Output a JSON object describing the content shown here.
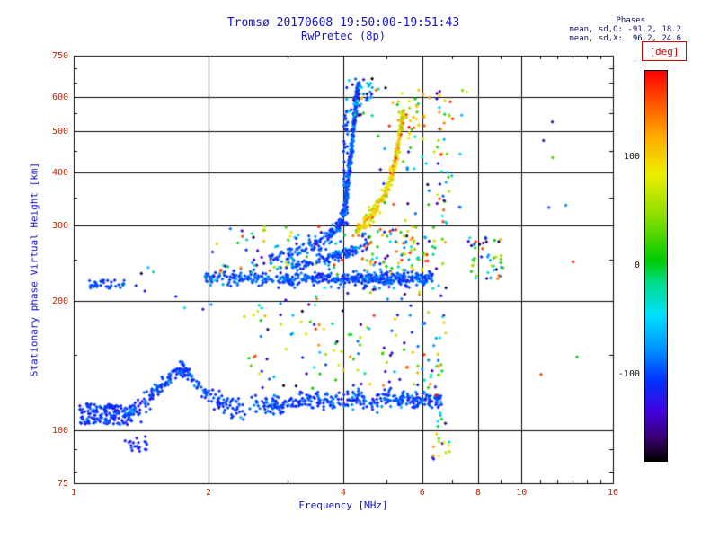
{
  "stats": {
    "header": "Phases",
    "line_o": "mean, sd,O: -91.2, 18.2",
    "line_x": "mean, sd,X:  96.2, 24.6"
  },
  "chart_data": {
    "type": "scatter",
    "title": "Tromsø 20170608 19:50:00-19:51:43",
    "subtitle": "RwPretec (8p)",
    "xlabel": "Frequency [MHz]",
    "ylabel": "Stationary phase Virtual Height [km]",
    "x_scale": "log",
    "x_range": [
      1,
      16
    ],
    "y_scale": "log",
    "y_range": [
      75,
      750
    ],
    "x_ticks_major": [
      {
        "v": 1,
        "label": "1"
      },
      {
        "v": 2,
        "label": "2"
      },
      {
        "v": 4,
        "label": "4"
      },
      {
        "v": 6,
        "label": "6"
      },
      {
        "v": 8,
        "label": "8"
      },
      {
        "v": 10,
        "label": "10"
      },
      {
        "v": 16,
        "label": "16"
      }
    ],
    "x_ticks_minor": [
      3,
      5,
      7,
      9,
      11,
      12,
      13,
      14,
      15
    ],
    "x_grid": [
      2,
      4,
      6,
      8,
      10
    ],
    "y_ticks_major": [
      {
        "v": 75,
        "label": "75"
      },
      {
        "v": 100,
        "label": "100"
      },
      {
        "v": 200,
        "label": "200"
      },
      {
        "v": 300,
        "label": "300"
      },
      {
        "v": 400,
        "label": "400"
      },
      {
        "v": 500,
        "label": "500"
      },
      {
        "v": 600,
        "label": "600"
      },
      {
        "v": 750,
        "label": "750"
      }
    ],
    "y_ticks_minor": [
      80,
      90,
      150,
      250,
      350,
      450,
      550,
      650,
      700
    ],
    "y_grid": [
      100,
      200,
      300,
      400,
      500,
      600
    ],
    "grid": true,
    "colorbar": {
      "label": "[deg]",
      "range": [
        -180,
        180
      ],
      "ticks": [
        {
          "v": 100,
          "label": "100"
        },
        {
          "v": 0,
          "label": "0"
        },
        {
          "v": -100,
          "label": "-100"
        }
      ],
      "stops": [
        [
          -180,
          "#000000"
        ],
        [
          -160,
          "#38006b"
        ],
        [
          -135,
          "#4400dd"
        ],
        [
          -105,
          "#0033ff"
        ],
        [
          -75,
          "#0099ff"
        ],
        [
          -45,
          "#00e0ff"
        ],
        [
          -15,
          "#00dd88"
        ],
        [
          5,
          "#00cc00"
        ],
        [
          45,
          "#88dd00"
        ],
        [
          85,
          "#eeee00"
        ],
        [
          120,
          "#ffaa00"
        ],
        [
          150,
          "#ff5500"
        ],
        [
          180,
          "#ff0000"
        ]
      ]
    },
    "series": [
      {
        "name": "e-region-left-blob",
        "kind": "cloud",
        "f": [
          1.03,
          1.35
        ],
        "h": [
          103,
          115
        ],
        "count": 150,
        "phase": {
          "mean": -105,
          "sd": 10
        }
      },
      {
        "name": "e-region-low-left",
        "kind": "cloud",
        "f": [
          1.28,
          1.46
        ],
        "h": [
          88,
          97
        ],
        "count": 20,
        "phase": {
          "mean": -110,
          "sd": 10
        }
      },
      {
        "name": "e-region-trace",
        "kind": "trace",
        "count": 560,
        "jitter_h": 3,
        "phase": {
          "mean": -100,
          "sd": 13
        },
        "control": [
          [
            1.3,
            108
          ],
          [
            1.4,
            112
          ],
          [
            1.5,
            120
          ],
          [
            1.6,
            130
          ],
          [
            1.7,
            138
          ],
          [
            1.78,
            137
          ],
          [
            1.88,
            128
          ],
          [
            2.0,
            120
          ],
          [
            2.15,
            115
          ],
          [
            2.35,
            112
          ],
          [
            2.6,
            115
          ],
          [
            2.85,
            113
          ],
          [
            3.1,
            116
          ],
          [
            3.4,
            118
          ],
          [
            3.7,
            115
          ],
          [
            4.0,
            117
          ],
          [
            4.3,
            119
          ],
          [
            4.6,
            116
          ],
          [
            4.9,
            118
          ],
          [
            5.2,
            117
          ],
          [
            5.5,
            119
          ],
          [
            5.9,
            117
          ],
          [
            6.3,
            118
          ],
          [
            6.6,
            118
          ]
        ]
      },
      {
        "name": "e-region-low-right",
        "kind": "cloud",
        "f": [
          6.3,
          7.0
        ],
        "h": [
          85,
          95
        ],
        "count": 12,
        "phase": {
          "uniform": [
            -150,
            150
          ]
        }
      },
      {
        "name": "f-layer-left-cluster",
        "kind": "cloud",
        "f": [
          1.08,
          1.3
        ],
        "h": [
          214,
          224
        ],
        "count": 35,
        "phase": {
          "mean": -100,
          "sd": 10
        }
      },
      {
        "name": "f-layer-flat-trace",
        "kind": "trace",
        "count": 520,
        "jitter_h": 4,
        "phase": {
          "mean": -98,
          "sd": 14
        },
        "control": [
          [
            1.95,
            227
          ],
          [
            2.3,
            225
          ],
          [
            2.7,
            226
          ],
          [
            3.1,
            225
          ],
          [
            3.5,
            226
          ],
          [
            3.9,
            225
          ],
          [
            4.3,
            226
          ],
          [
            4.7,
            225
          ],
          [
            5.1,
            226
          ],
          [
            5.5,
            225
          ],
          [
            5.9,
            226
          ],
          [
            6.3,
            226
          ]
        ]
      },
      {
        "name": "f-layer-sprinkles",
        "kind": "cloud",
        "f": [
          2.0,
          6.5
        ],
        "h": [
          231,
          300
        ],
        "count": 90,
        "phase": {
          "uniform": [
            -175,
            175
          ]
        }
      },
      {
        "name": "o-mode-cusp-trace",
        "kind": "trace",
        "count": 430,
        "jitter_h": 6,
        "phase": {
          "mean": -95,
          "sd": 14
        },
        "control": [
          [
            2.75,
            252
          ],
          [
            3.0,
            258
          ],
          [
            3.2,
            264
          ],
          [
            3.45,
            272
          ],
          [
            3.7,
            282
          ],
          [
            3.85,
            292
          ],
          [
            3.95,
            305
          ],
          [
            4.02,
            325
          ],
          [
            4.07,
            350
          ],
          [
            4.1,
            380
          ],
          [
            4.13,
            410
          ],
          [
            4.16,
            445
          ],
          [
            4.19,
            480
          ],
          [
            4.22,
            515
          ],
          [
            4.25,
            550
          ],
          [
            4.27,
            585
          ],
          [
            4.3,
            620
          ],
          [
            4.32,
            645
          ]
        ]
      },
      {
        "name": "o-mode-inner-arc",
        "kind": "trace",
        "count": 120,
        "jitter_h": 4,
        "phase": {
          "mean": -95,
          "sd": 15
        },
        "control": [
          [
            3.05,
            240
          ],
          [
            3.35,
            246
          ],
          [
            3.65,
            251
          ],
          [
            3.95,
            258
          ],
          [
            4.25,
            264
          ],
          [
            4.55,
            270
          ]
        ]
      },
      {
        "name": "o-mode-vertical-strand",
        "kind": "cloud",
        "f": [
          4.0,
          4.09
        ],
        "h": [
          300,
          560
        ],
        "count": 55,
        "phase": {
          "mean": -100,
          "sd": 14
        }
      },
      {
        "name": "o-mode-top-scatter",
        "kind": "cloud",
        "f": [
          4.05,
          4.65
        ],
        "h": [
          540,
          665
        ],
        "count": 45,
        "phase": {
          "mean": -80,
          "sd": 60
        }
      },
      {
        "name": "x-mode-trace",
        "kind": "trace",
        "count": 260,
        "jitter_h": 7,
        "phase": {
          "mean": 96,
          "sd": 25
        },
        "control": [
          [
            4.25,
            292
          ],
          [
            4.4,
            300
          ],
          [
            4.55,
            312
          ],
          [
            4.7,
            326
          ],
          [
            4.85,
            342
          ],
          [
            5.0,
            362
          ],
          [
            5.1,
            385
          ],
          [
            5.2,
            415
          ],
          [
            5.28,
            450
          ],
          [
            5.35,
            490
          ],
          [
            5.4,
            525
          ],
          [
            5.45,
            555
          ]
        ]
      },
      {
        "name": "x-mode-top-scatter",
        "kind": "cloud",
        "f": [
          5.3,
          6.1
        ],
        "h": [
          480,
          630
        ],
        "count": 35,
        "phase": {
          "mean": 90,
          "sd": 50
        }
      },
      {
        "name": "mid-scatter-low",
        "kind": "cloud",
        "f": [
          2.4,
          6.6
        ],
        "h": [
          125,
          215
        ],
        "count": 130,
        "phase": {
          "uniform": [
            -175,
            175
          ]
        }
      },
      {
        "name": "mid-scatter-f",
        "kind": "cloud",
        "f": [
          4.4,
          6.4
        ],
        "h": [
          235,
          300
        ],
        "count": 70,
        "phase": {
          "uniform": [
            -175,
            175
          ]
        }
      },
      {
        "name": "high-sparse-scatter",
        "kind": "cloud",
        "f": [
          4.6,
          7.6
        ],
        "h": [
          300,
          640
        ],
        "count": 55,
        "phase": {
          "uniform": [
            -175,
            175
          ]
        }
      },
      {
        "name": "vertical-strip-6p6",
        "kind": "cloud",
        "f": [
          6.45,
          6.78
        ],
        "h": [
          95,
          620
        ],
        "count": 55,
        "phase": {
          "uniform": [
            -175,
            175
          ]
        }
      },
      {
        "name": "right-cluster",
        "kind": "cloud",
        "f": [
          7.6,
          9.2
        ],
        "h": [
          225,
          285
        ],
        "count": 45,
        "phase": {
          "uniform": [
            -175,
            175
          ]
        }
      },
      {
        "name": "far-right-sparse",
        "kind": "cloud",
        "f": [
          9.5,
          13.5
        ],
        "h": [
          110,
          620
        ],
        "count": 8,
        "phase": {
          "uniform": [
            -175,
            175
          ]
        }
      },
      {
        "name": "left-mid-sparse",
        "kind": "cloud",
        "f": [
          1.35,
          2.4
        ],
        "h": [
          190,
          245
        ],
        "count": 12,
        "phase": {
          "mean": -90,
          "sd": 40
        }
      }
    ]
  },
  "colors": {
    "title": "#1414cc",
    "tick_labels": "#cc2200",
    "axis_labels": "#1414cc",
    "frame": "#000000"
  }
}
